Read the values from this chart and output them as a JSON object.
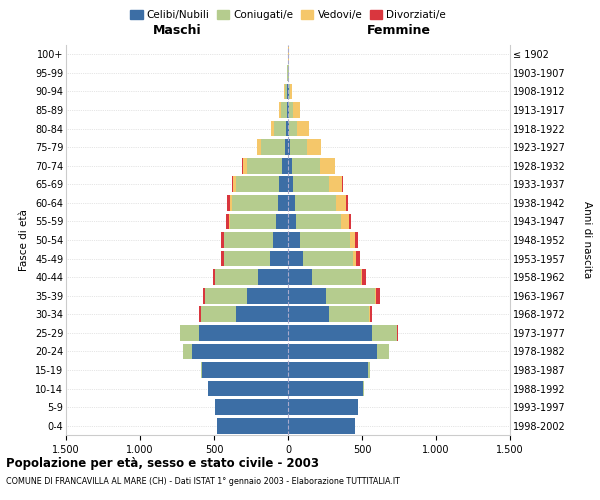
{
  "age_groups": [
    "0-4",
    "5-9",
    "10-14",
    "15-19",
    "20-24",
    "25-29",
    "30-34",
    "35-39",
    "40-44",
    "45-49",
    "50-54",
    "55-59",
    "60-64",
    "65-69",
    "70-74",
    "75-79",
    "80-84",
    "85-89",
    "90-94",
    "95-99",
    "100+"
  ],
  "birth_years": [
    "1998-2002",
    "1993-1997",
    "1988-1992",
    "1983-1987",
    "1978-1982",
    "1973-1977",
    "1968-1972",
    "1963-1967",
    "1958-1962",
    "1953-1957",
    "1948-1952",
    "1943-1947",
    "1938-1942",
    "1933-1937",
    "1928-1932",
    "1923-1927",
    "1918-1922",
    "1913-1917",
    "1908-1912",
    "1903-1907",
    "≤ 1902"
  ],
  "maschi": {
    "celibi": [
      480,
      490,
      540,
      580,
      650,
      600,
      350,
      280,
      200,
      120,
      100,
      80,
      70,
      60,
      40,
      20,
      12,
      8,
      5,
      2,
      2
    ],
    "coniugati": [
      0,
      0,
      2,
      10,
      60,
      130,
      240,
      280,
      290,
      310,
      330,
      310,
      310,
      290,
      240,
      160,
      80,
      40,
      15,
      3,
      1
    ],
    "vedovi": [
      0,
      0,
      0,
      0,
      0,
      0,
      1,
      2,
      3,
      5,
      5,
      10,
      15,
      20,
      25,
      30,
      25,
      15,
      5,
      1,
      0
    ],
    "divorziati": [
      0,
      0,
      0,
      0,
      1,
      3,
      8,
      10,
      15,
      18,
      20,
      20,
      15,
      10,
      5,
      2,
      1,
      0,
      0,
      0,
      0
    ]
  },
  "femmine": {
    "nubili": [
      450,
      470,
      510,
      540,
      600,
      570,
      280,
      260,
      160,
      100,
      80,
      55,
      45,
      35,
      25,
      15,
      10,
      8,
      5,
      2,
      2
    ],
    "coniugate": [
      0,
      0,
      2,
      15,
      80,
      165,
      270,
      330,
      330,
      340,
      340,
      305,
      280,
      240,
      190,
      110,
      50,
      25,
      10,
      2,
      1
    ],
    "vedove": [
      0,
      0,
      0,
      0,
      1,
      2,
      3,
      5,
      10,
      20,
      30,
      50,
      70,
      90,
      100,
      100,
      80,
      45,
      15,
      3,
      1
    ],
    "divorziate": [
      0,
      0,
      0,
      0,
      2,
      5,
      15,
      25,
      30,
      25,
      20,
      15,
      8,
      5,
      3,
      1,
      1,
      0,
      0,
      0,
      0
    ]
  },
  "colors": {
    "celibi": "#3c6ea5",
    "coniugati": "#b5cc8e",
    "vedovi": "#f5c76a",
    "divorziati": "#d9363e"
  },
  "xlim": 1500,
  "title": "Popolazione per età, sesso e stato civile - 2003",
  "subtitle": "COMUNE DI FRANCAVILLA AL MARE (CH) - Dati ISTAT 1° gennaio 2003 - Elaborazione TUTTITALIA.IT",
  "ylabel_left": "Fasce di età",
  "ylabel_right": "Anni di nascita",
  "xlabel_left": "Maschi",
  "xlabel_right": "Femmine",
  "xticks": [
    -1500,
    -1000,
    -500,
    0,
    500,
    1000,
    1500
  ],
  "xtick_labels": [
    "1.500",
    "1.000",
    "500",
    "0",
    "500",
    "1.000",
    "1.500"
  ]
}
